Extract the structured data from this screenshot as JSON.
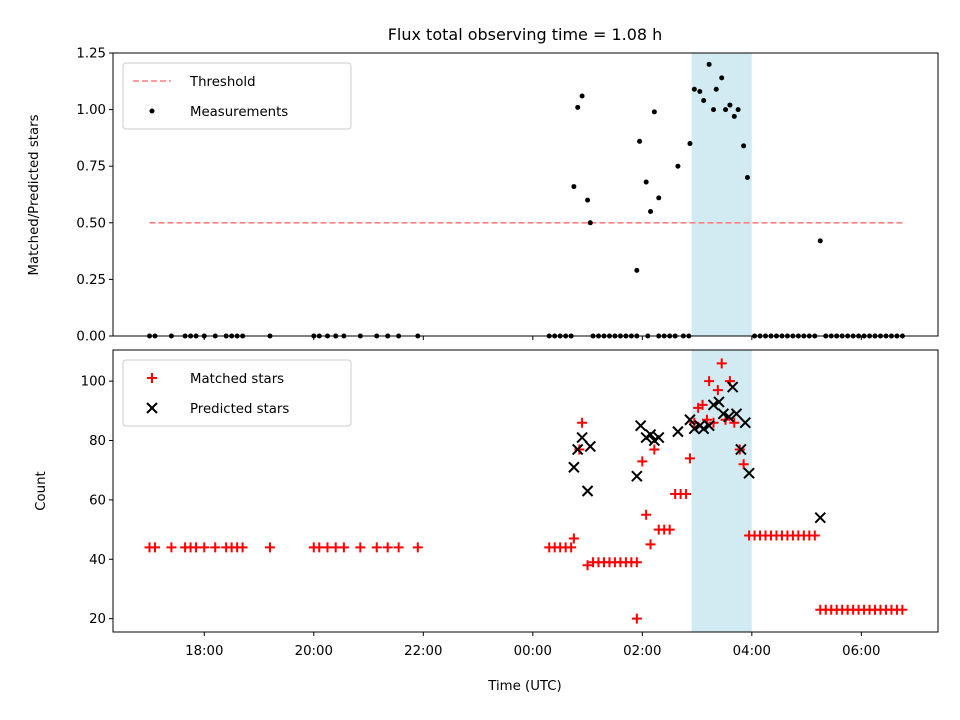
{
  "chart_data": [
    {
      "type": "scatter",
      "title": "Flux total observing time = 1.08 h",
      "xlabel": "",
      "ylabel": "Matched/Predicted stars",
      "ylim": [
        0,
        1.25
      ],
      "yticks": [
        "0.00",
        "0.25",
        "0.50",
        "0.75",
        "1.00",
        "1.25"
      ],
      "xlim_hours": [
        16.333,
        31.4
      ],
      "highlight_span_hours": [
        26.9,
        28.0
      ],
      "legend_position": "top-left",
      "series": [
        {
          "name": "Threshold",
          "style": "dashed-line",
          "color": "#ff7f7f",
          "x_hours": [
            17.0,
            30.75
          ],
          "y": [
            0.5,
            0.5
          ]
        },
        {
          "name": "Measurements",
          "style": "dot",
          "color": "#000000",
          "points": [
            [
              17.0,
              0
            ],
            [
              17.1,
              0
            ],
            [
              17.4,
              0
            ],
            [
              17.65,
              0
            ],
            [
              17.75,
              0
            ],
            [
              17.85,
              0
            ],
            [
              18.0,
              0
            ],
            [
              18.2,
              0
            ],
            [
              18.4,
              0
            ],
            [
              18.5,
              0
            ],
            [
              18.6,
              0
            ],
            [
              18.7,
              0
            ],
            [
              19.2,
              0
            ],
            [
              20.0,
              0
            ],
            [
              20.1,
              0
            ],
            [
              20.25,
              0
            ],
            [
              20.4,
              0
            ],
            [
              20.55,
              0
            ],
            [
              20.85,
              0
            ],
            [
              21.15,
              0
            ],
            [
              21.35,
              0
            ],
            [
              21.55,
              0
            ],
            [
              21.9,
              0
            ],
            [
              24.3,
              0
            ],
            [
              24.4,
              0
            ],
            [
              24.5,
              0
            ],
            [
              24.6,
              0
            ],
            [
              24.7,
              0
            ],
            [
              24.75,
              0.66
            ],
            [
              24.82,
              1.01
            ],
            [
              24.9,
              1.06
            ],
            [
              25.0,
              0.6
            ],
            [
              25.05,
              0.5
            ],
            [
              25.1,
              0
            ],
            [
              25.2,
              0
            ],
            [
              25.3,
              0
            ],
            [
              25.4,
              0
            ],
            [
              25.5,
              0
            ],
            [
              25.6,
              0
            ],
            [
              25.7,
              0
            ],
            [
              25.8,
              0
            ],
            [
              25.9,
              0
            ],
            [
              25.9,
              0.29
            ],
            [
              25.95,
              0.86
            ],
            [
              26.07,
              0.68
            ],
            [
              26.15,
              0.55
            ],
            [
              26.22,
              0.99
            ],
            [
              26.3,
              0.61
            ],
            [
              26.1,
              0
            ],
            [
              26.3,
              0
            ],
            [
              26.4,
              0
            ],
            [
              26.5,
              0
            ],
            [
              26.6,
              0
            ],
            [
              26.75,
              0
            ],
            [
              26.85,
              0
            ],
            [
              26.65,
              0.75
            ],
            [
              26.87,
              0.85
            ],
            [
              26.95,
              1.09
            ],
            [
              27.05,
              1.08
            ],
            [
              27.12,
              1.04
            ],
            [
              27.22,
              1.2
            ],
            [
              27.3,
              1.0
            ],
            [
              27.35,
              1.09
            ],
            [
              27.45,
              1.14
            ],
            [
              27.52,
              1.0
            ],
            [
              27.6,
              1.02
            ],
            [
              27.68,
              0.97
            ],
            [
              27.75,
              1.0
            ],
            [
              27.85,
              0.84
            ],
            [
              27.92,
              0.7
            ],
            [
              28.05,
              0
            ],
            [
              28.15,
              0
            ],
            [
              28.25,
              0
            ],
            [
              28.35,
              0
            ],
            [
              28.45,
              0
            ],
            [
              28.55,
              0
            ],
            [
              28.65,
              0
            ],
            [
              28.75,
              0
            ],
            [
              28.85,
              0
            ],
            [
              28.95,
              0
            ],
            [
              29.05,
              0
            ],
            [
              29.15,
              0
            ],
            [
              29.25,
              0.42
            ],
            [
              29.35,
              0
            ],
            [
              29.45,
              0
            ],
            [
              29.55,
              0
            ],
            [
              29.65,
              0
            ],
            [
              29.75,
              0
            ],
            [
              29.85,
              0
            ],
            [
              29.95,
              0
            ],
            [
              30.05,
              0
            ],
            [
              30.15,
              0
            ],
            [
              30.25,
              0
            ],
            [
              30.35,
              0
            ],
            [
              30.45,
              0
            ],
            [
              30.55,
              0
            ],
            [
              30.65,
              0
            ],
            [
              30.75,
              0
            ]
          ]
        }
      ]
    },
    {
      "type": "scatter",
      "title": "",
      "xlabel": "Time (UTC)",
      "ylabel": "Count",
      "ylim": [
        15.5,
        110.5
      ],
      "yticks": [
        "20",
        "40",
        "60",
        "80",
        "100"
      ],
      "xticks": [
        "18:00",
        "20:00",
        "22:00",
        "00:00",
        "02:00",
        "04:00",
        "06:00"
      ],
      "xlim_hours": [
        16.333,
        31.4
      ],
      "highlight_span_hours": [
        26.9,
        28.0
      ],
      "legend_position": "top-left",
      "series": [
        {
          "name": "Matched stars",
          "style": "plus",
          "color": "#ff0000",
          "points": [
            [
              17.0,
              44
            ],
            [
              17.1,
              44
            ],
            [
              17.4,
              44
            ],
            [
              17.65,
              44
            ],
            [
              17.75,
              44
            ],
            [
              17.85,
              44
            ],
            [
              18.0,
              44
            ],
            [
              18.2,
              44
            ],
            [
              18.4,
              44
            ],
            [
              18.5,
              44
            ],
            [
              18.6,
              44
            ],
            [
              18.7,
              44
            ],
            [
              19.2,
              44
            ],
            [
              20.0,
              44
            ],
            [
              20.1,
              44
            ],
            [
              20.25,
              44
            ],
            [
              20.4,
              44
            ],
            [
              20.55,
              44
            ],
            [
              20.85,
              44
            ],
            [
              21.15,
              44
            ],
            [
              21.35,
              44
            ],
            [
              21.55,
              44
            ],
            [
              21.9,
              44
            ],
            [
              24.3,
              44
            ],
            [
              24.4,
              44
            ],
            [
              24.5,
              44
            ],
            [
              24.6,
              44
            ],
            [
              24.7,
              44
            ],
            [
              24.75,
              47
            ],
            [
              24.85,
              77
            ],
            [
              24.9,
              86
            ],
            [
              25.0,
              38
            ],
            [
              25.1,
              39
            ],
            [
              25.2,
              39
            ],
            [
              25.3,
              39
            ],
            [
              25.4,
              39
            ],
            [
              25.5,
              39
            ],
            [
              25.6,
              39
            ],
            [
              25.7,
              39
            ],
            [
              25.8,
              39
            ],
            [
              25.9,
              39
            ],
            [
              25.9,
              20
            ],
            [
              26.0,
              73
            ],
            [
              26.07,
              55
            ],
            [
              26.15,
              45
            ],
            [
              26.22,
              77
            ],
            [
              26.3,
              50
            ],
            [
              26.4,
              50
            ],
            [
              26.5,
              50
            ],
            [
              26.6,
              62
            ],
            [
              26.7,
              62
            ],
            [
              26.8,
              62
            ],
            [
              26.87,
              74
            ],
            [
              26.95,
              86
            ],
            [
              27.02,
              91
            ],
            [
              27.1,
              92
            ],
            [
              27.18,
              87
            ],
            [
              27.22,
              100
            ],
            [
              27.3,
              86
            ],
            [
              27.38,
              97
            ],
            [
              27.45,
              106
            ],
            [
              27.52,
              87
            ],
            [
              27.6,
              100
            ],
            [
              27.68,
              86
            ],
            [
              27.78,
              77
            ],
            [
              27.85,
              72
            ],
            [
              27.95,
              48
            ],
            [
              28.05,
              48
            ],
            [
              28.15,
              48
            ],
            [
              28.25,
              48
            ],
            [
              28.35,
              48
            ],
            [
              28.45,
              48
            ],
            [
              28.55,
              48
            ],
            [
              28.65,
              48
            ],
            [
              28.75,
              48
            ],
            [
              28.85,
              48
            ],
            [
              28.95,
              48
            ],
            [
              29.05,
              48
            ],
            [
              29.15,
              48
            ],
            [
              29.25,
              23
            ],
            [
              29.35,
              23
            ],
            [
              29.45,
              23
            ],
            [
              29.55,
              23
            ],
            [
              29.65,
              23
            ],
            [
              29.75,
              23
            ],
            [
              29.85,
              23
            ],
            [
              29.95,
              23
            ],
            [
              30.05,
              23
            ],
            [
              30.15,
              23
            ],
            [
              30.25,
              23
            ],
            [
              30.35,
              23
            ],
            [
              30.45,
              23
            ],
            [
              30.55,
              23
            ],
            [
              30.65,
              23
            ],
            [
              30.75,
              23
            ]
          ]
        },
        {
          "name": "Predicted stars",
          "style": "x",
          "color": "#000000",
          "points": [
            [
              24.75,
              71
            ],
            [
              24.82,
              77
            ],
            [
              24.9,
              81
            ],
            [
              25.0,
              63
            ],
            [
              25.05,
              78
            ],
            [
              25.9,
              68
            ],
            [
              25.97,
              85
            ],
            [
              26.07,
              81
            ],
            [
              26.15,
              82
            ],
            [
              26.22,
              80
            ],
            [
              26.3,
              81
            ],
            [
              26.65,
              83
            ],
            [
              26.87,
              87
            ],
            [
              26.95,
              84
            ],
            [
              27.05,
              85
            ],
            [
              27.12,
              84
            ],
            [
              27.22,
              85
            ],
            [
              27.3,
              92
            ],
            [
              27.4,
              93
            ],
            [
              27.48,
              89
            ],
            [
              27.58,
              88
            ],
            [
              27.65,
              98
            ],
            [
              27.72,
              89
            ],
            [
              27.8,
              77
            ],
            [
              27.88,
              86
            ],
            [
              27.95,
              69
            ],
            [
              29.25,
              54
            ]
          ]
        }
      ]
    }
  ]
}
